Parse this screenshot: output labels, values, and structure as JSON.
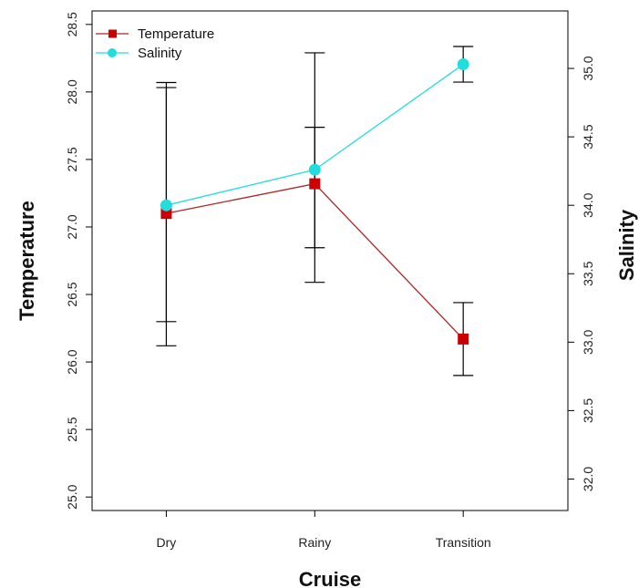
{
  "chart_data": {
    "type": "line",
    "categories": [
      "Dry",
      "Rainy",
      "Transition"
    ],
    "xlabel": "Cruise",
    "ylabel": "Temperature",
    "y2label": "Salinity",
    "ylim": [
      24.9,
      28.6
    ],
    "y2lim": [
      31.77,
      35.42
    ],
    "yticks": [
      "25.0",
      "25.5",
      "26.0",
      "26.5",
      "27.0",
      "27.5",
      "28.0",
      "28.5"
    ],
    "y2ticks": [
      "32.0",
      "32.5",
      "33.0",
      "33.5",
      "34.0",
      "34.5",
      "35.0"
    ],
    "legend_position": "top-left",
    "series": [
      {
        "name": "Temperature",
        "axis": "left",
        "color": "#cc0000",
        "line_color": "#b22222",
        "marker": "square",
        "values": [
          27.1,
          27.32,
          26.17
        ],
        "error_low": [
          26.12,
          26.59,
          25.9
        ],
        "error_high": [
          28.07,
          28.29,
          26.44
        ]
      },
      {
        "name": "Salinity",
        "axis": "right",
        "color": "#22dddd",
        "line_color": "#22dddd",
        "marker": "circle",
        "values": [
          34.0,
          34.26,
          35.03
        ],
        "error_low": [
          33.15,
          33.69,
          34.9
        ],
        "error_high": [
          34.86,
          34.57,
          35.16
        ]
      }
    ]
  }
}
